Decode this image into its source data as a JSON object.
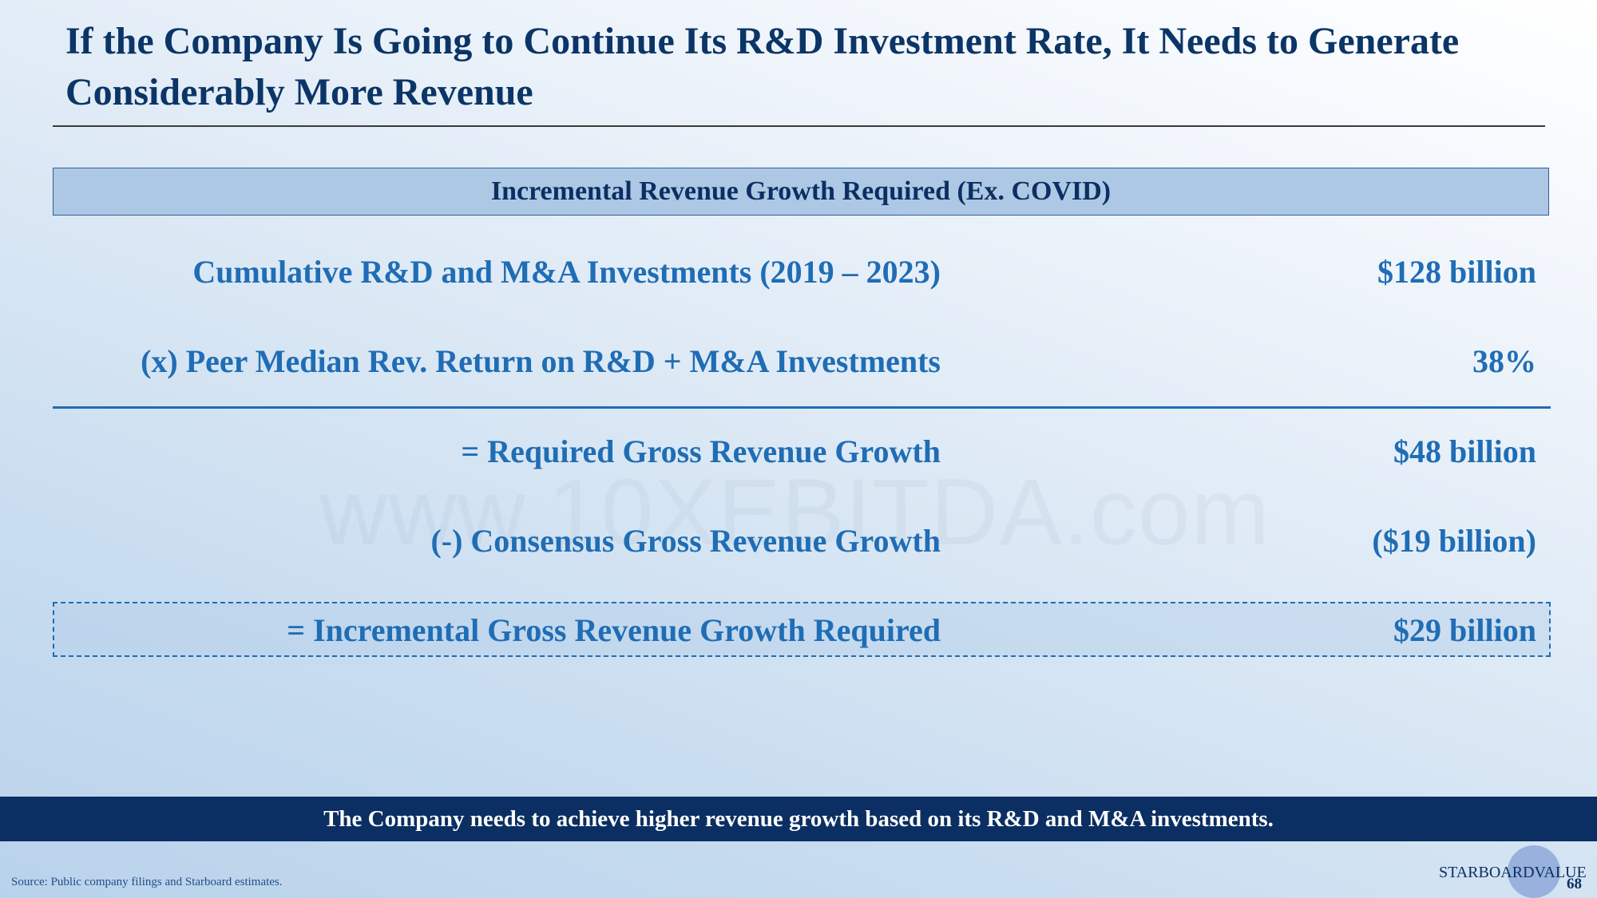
{
  "slide": {
    "title": "If the Company Is Going to Continue Its R&D Investment Rate, It Needs to Generate Considerably More Revenue",
    "page_number": "68"
  },
  "section": {
    "header": "Incremental Revenue Growth Required (Ex. COVID)"
  },
  "calculation": {
    "rows": [
      {
        "label": "Cumulative R&D and M&A Investments  (2019 – 2023)",
        "value": "$128 billion"
      },
      {
        "label": "(x) Peer Median Rev. Return on R&D + M&A Investments",
        "value": "38%"
      },
      {
        "label": "=  Required Gross Revenue Growth",
        "value": "$48 billion"
      },
      {
        "label": "(-) Consensus Gross Revenue Growth",
        "value": "($19 billion)"
      },
      {
        "label": "= Incremental Gross Revenue Growth Required",
        "value": "$29 billion"
      }
    ]
  },
  "watermark": "www.10XEBITDA.com",
  "banner": {
    "text": "The Company needs to achieve higher revenue growth based on its R&D and M&A investments."
  },
  "footer": {
    "source": "Source: Public company filings and Starboard estimates.",
    "logo_text": "STARBOARDVALUE"
  },
  "colors": {
    "title": "#0b3567",
    "accent_blue": "#1f6db5",
    "header_fill": "#adc8e4",
    "banner_fill": "#0b2f62"
  }
}
